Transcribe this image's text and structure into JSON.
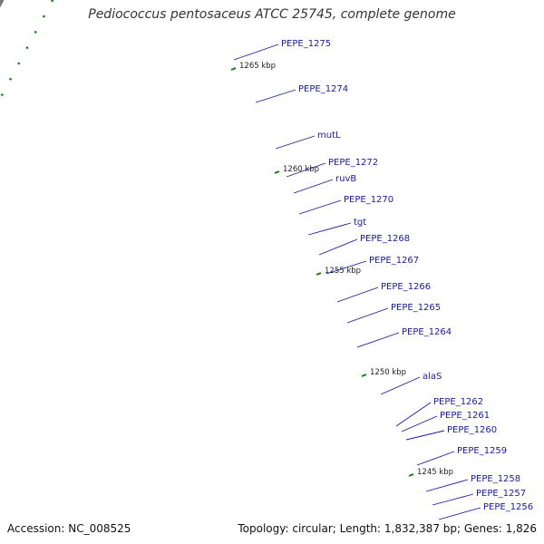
{
  "title": "Pediococcus pentosaceus ATCC 25745, complete genome",
  "footer": {
    "accession": "Accession: NC_008525",
    "topology": "Topology: circular; Length: 1,832,387 bp; Genes: 1,826"
  },
  "colors": {
    "forward_cds": "#0a0ae6",
    "pink": "#ff1a8c",
    "salmon": "#f08080",
    "gray": "#b5b5b5",
    "cyan": "#1ad0d6",
    "lime": "#adf03a",
    "orange": "#ff9000",
    "darkgray": "#707070",
    "olive": "#6b8e23",
    "label": "#1a1aa0",
    "tick": "#1a7a1a"
  },
  "kbp_ticks": [
    "1265 kbp",
    "1260 kbp",
    "1255 kbp",
    "1250 kbp",
    "1245 kbp"
  ],
  "gene_labels": [
    "PEPE_1275",
    "PEPE_1274",
    "mutL",
    "PEPE_1272",
    "ruvB",
    "PEPE_1270",
    "tgt",
    "PEPE_1268",
    "PEPE_1267",
    "PEPE_1266",
    "PEPE_1265",
    "PEPE_1264",
    "alaS",
    "PEPE_1262",
    "PEPE_1261",
    "PEPE_1260",
    "PEPE_1259",
    "PEPE_1258",
    "PEPE_1257",
    "PEPE_1256"
  ]
}
